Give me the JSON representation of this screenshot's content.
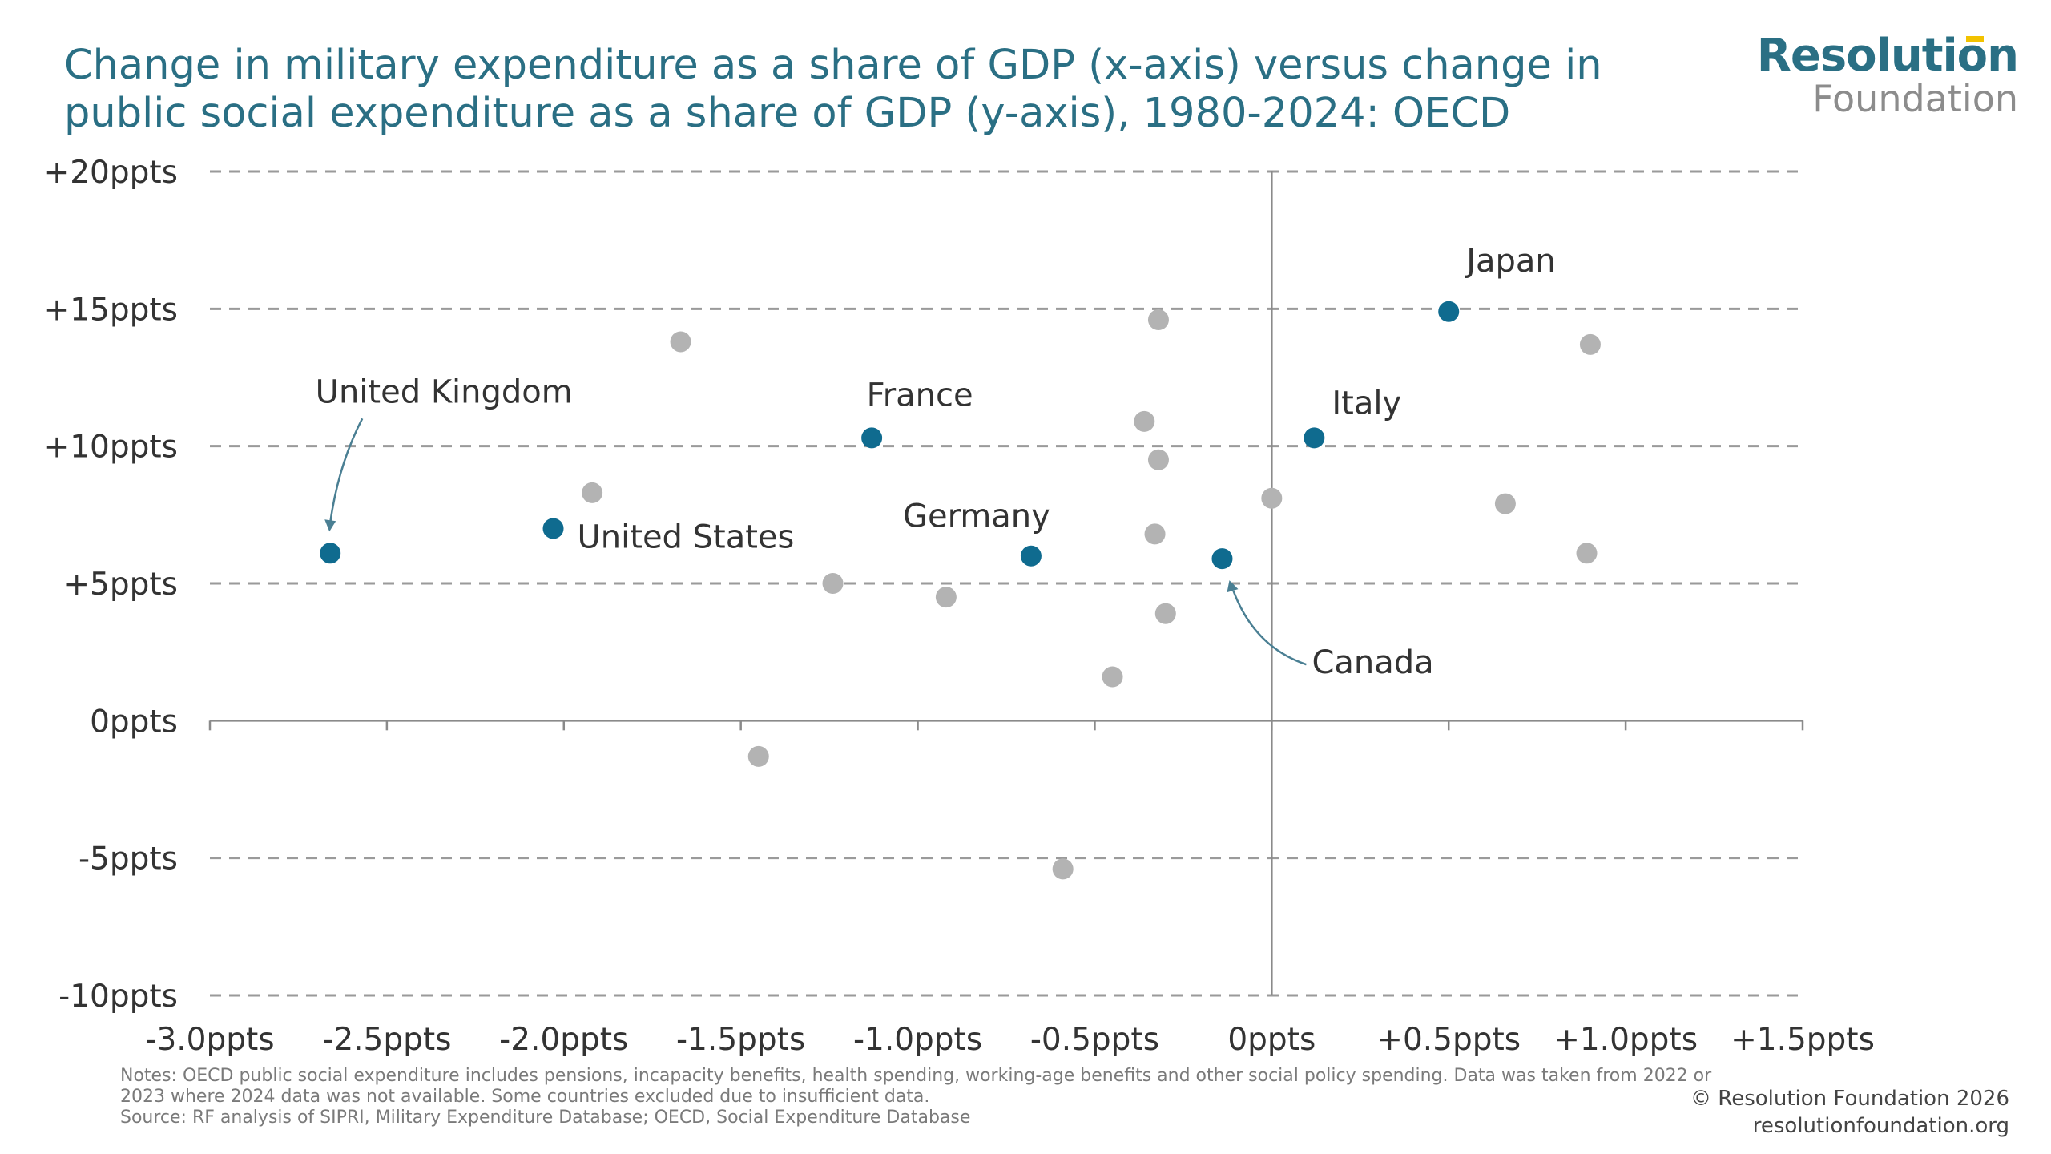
{
  "header": {
    "title": "Change in military expenditure as a share of GDP (x-axis) versus change in public social expenditure as a share of GDP (y-axis), 1980-2024: OECD"
  },
  "logo": {
    "line1": "Resolution",
    "line2": "Foundation"
  },
  "footer": {
    "notes": "Notes: OECD public social expenditure includes pensions, incapacity benefits, health spending, working-age benefits and other social policy spending. Data was taken from 2022 or 2023 where 2024 data was not available. Some countries excluded due to insufficient data.",
    "source": "Source: RF analysis of SIPRI, Military Expenditure Database; OECD, Social Expenditure Database",
    "copyright": "© Resolution Foundation 2026",
    "website": "resolutionfoundation.org"
  },
  "colors": {
    "highlight": "#0f6b8f",
    "other": "#b3b3b3",
    "grid": "#9a9a9a",
    "axis": "#8a8a8a",
    "text": "#333333"
  },
  "chart_data": {
    "type": "scatter",
    "title": "Change in military expenditure as a share of GDP (x-axis) versus change in public social expenditure as a share of GDP (y-axis), 1980-2024: OECD",
    "xlim": [
      -3.0,
      1.5
    ],
    "ylim": [
      -10,
      20
    ],
    "grid": "horizontal dashed",
    "x_ticks": [
      {
        "value": -3.0,
        "label": "-3.0ppts"
      },
      {
        "value": -2.5,
        "label": "-2.5ppts"
      },
      {
        "value": -2.0,
        "label": "-2.0ppts"
      },
      {
        "value": -1.5,
        "label": "-1.5ppts"
      },
      {
        "value": -1.0,
        "label": "-1.0ppts"
      },
      {
        "value": -0.5,
        "label": "-0.5ppts"
      },
      {
        "value": 0,
        "label": "0ppts"
      },
      {
        "value": 0.5,
        "label": "+0.5ppts"
      },
      {
        "value": 1.0,
        "label": "+1.0ppts"
      },
      {
        "value": 1.5,
        "label": "+1.5ppts"
      }
    ],
    "y_ticks": [
      {
        "value": 20,
        "label": "+20ppts"
      },
      {
        "value": 15,
        "label": "+15ppts"
      },
      {
        "value": 10,
        "label": "+10ppts"
      },
      {
        "value": 5,
        "label": "+5ppts"
      },
      {
        "value": 0,
        "label": "0ppts"
      },
      {
        "value": -5,
        "label": "-5ppts"
      },
      {
        "value": -10,
        "label": "-10ppts"
      }
    ],
    "highlighted": [
      {
        "label": "United Kingdom",
        "x": -2.66,
        "y": 6.1
      },
      {
        "label": "United States",
        "x": -2.03,
        "y": 7.0
      },
      {
        "label": "France",
        "x": -1.13,
        "y": 10.3
      },
      {
        "label": "Germany",
        "x": -0.68,
        "y": 6.0
      },
      {
        "label": "Canada",
        "x": -0.14,
        "y": 5.9
      },
      {
        "label": "Italy",
        "x": 0.12,
        "y": 10.3
      },
      {
        "label": "Japan",
        "x": 0.5,
        "y": 14.9
      }
    ],
    "others": [
      {
        "x": -1.67,
        "y": 13.8
      },
      {
        "x": -1.92,
        "y": 8.3
      },
      {
        "x": -1.24,
        "y": 5.0
      },
      {
        "x": -0.92,
        "y": 4.5
      },
      {
        "x": -1.45,
        "y": -1.3
      },
      {
        "x": -0.59,
        "y": -5.4
      },
      {
        "x": -0.45,
        "y": 1.6
      },
      {
        "x": -0.32,
        "y": 14.6
      },
      {
        "x": -0.36,
        "y": 10.9
      },
      {
        "x": -0.32,
        "y": 9.5
      },
      {
        "x": -0.33,
        "y": 6.8
      },
      {
        "x": -0.3,
        "y": 3.9
      },
      {
        "x": 0.0,
        "y": 8.1
      },
      {
        "x": 0.66,
        "y": 7.9
      },
      {
        "x": 0.9,
        "y": 13.7
      },
      {
        "x": 0.89,
        "y": 6.1
      }
    ]
  }
}
